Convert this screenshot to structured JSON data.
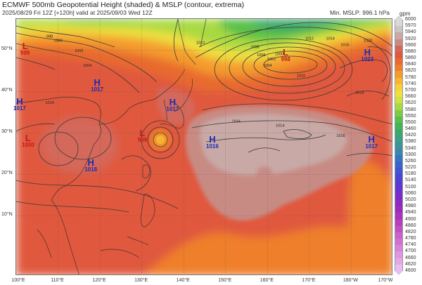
{
  "header": {
    "title": "ECMWF 500mb Geopotential Height (shaded) & MSLP (contour, extrema)",
    "subtitle": "2025/08/29 Fri 12Z [+120h] valid at 2025/09/03 Wed 12Z",
    "min_mslp": "Min. MSLP: 996.1 hPa"
  },
  "colorbar": {
    "unit": "gpm",
    "levels": [
      "6000",
      "5970",
      "5940",
      "5920",
      "5900",
      "5880",
      "5860",
      "5840",
      "5820",
      "5780",
      "5740",
      "5700",
      "5660",
      "5620",
      "5580",
      "5550",
      "5500",
      "5460",
      "5420",
      "5380",
      "5340",
      "5300",
      "5260",
      "5220",
      "5180",
      "5140",
      "5100",
      "5060",
      "5020",
      "4980",
      "4940",
      "4900",
      "4860",
      "4820",
      "4780",
      "4740",
      "4700",
      "4660",
      "4620",
      "4600"
    ],
    "colors": [
      "#d9d9d9",
      "#cfc4c4",
      "#c8a9a6",
      "#c88b84",
      "#d4675a",
      "#e0583d",
      "#e86a2e",
      "#ef7f2a",
      "#f49c2e",
      "#f8b534",
      "#f7cf3a",
      "#eee13f",
      "#cfe242",
      "#a8d943",
      "#7ccc45",
      "#58bf4a",
      "#43b458",
      "#3aa969",
      "#3f9f80",
      "#3c9497",
      "#3b86ad",
      "#3875c0",
      "#3a63cc",
      "#4053d2",
      "#4a45d4",
      "#583ad2",
      "#6a31ce",
      "#7b2bc8",
      "#8c29c2",
      "#9c2bbd",
      "#ab33bc",
      "#b73fbf",
      "#c24ec4",
      "#cb5fcb",
      "#d270d2",
      "#d982d9",
      "#df95e0",
      "#e5a8e7",
      "#ebbdee"
    ]
  },
  "axes": {
    "lat_labels": [
      {
        "text": "50°N",
        "lat": 50
      },
      {
        "text": "40°N",
        "lat": 40
      },
      {
        "text": "30°N",
        "lat": 30
      },
      {
        "text": "20°N",
        "lat": 20
      },
      {
        "text": "10°N",
        "lat": 10
      }
    ],
    "lon_labels": [
      {
        "text": "100°E",
        "lon": 100
      },
      {
        "text": "110°E",
        "lon": 110
      },
      {
        "text": "120°E",
        "lon": 120
      },
      {
        "text": "130°E",
        "lon": 130
      },
      {
        "text": "140°E",
        "lon": 140
      },
      {
        "text": "150°E",
        "lon": 150
      },
      {
        "text": "160°E",
        "lon": 160
      },
      {
        "text": "170°E",
        "lon": 170
      },
      {
        "text": "180°W",
        "lon": 180
      },
      {
        "text": "170°W",
        "lon": 190
      }
    ]
  },
  "centers": [
    {
      "type": "L",
      "value": "999",
      "lat": 50.5,
      "lon": 102.3
    },
    {
      "type": "H",
      "value": "1017",
      "lat": 41.8,
      "lon": 119.5
    },
    {
      "type": "H",
      "value": "1017",
      "lat": 37.2,
      "lon": 101.0
    },
    {
      "type": "H",
      "value": "1017",
      "lat": 37.0,
      "lon": 137.5
    },
    {
      "type": "L",
      "value": "1000",
      "lat": 28.3,
      "lon": 103.0
    },
    {
      "type": "L",
      "value": "999",
      "lat": 29.5,
      "lon": 130.3
    },
    {
      "type": "H",
      "value": "1018",
      "lat": 22.5,
      "lon": 118.0
    },
    {
      "type": "H",
      "value": "1016",
      "lat": 28.0,
      "lon": 147.0
    },
    {
      "type": "L",
      "value": "998",
      "lat": 49.0,
      "lon": 164.5
    },
    {
      "type": "H",
      "value": "1023",
      "lat": 49.0,
      "lon": 184.0
    },
    {
      "type": "H",
      "value": "1017",
      "lat": 28.0,
      "lon": 185.0
    }
  ],
  "isobar_labels": [
    {
      "text": "1006",
      "lat": 48.5,
      "lon": 158.5
    },
    {
      "text": "1004",
      "lat": 46.0,
      "lon": 160.0
    },
    {
      "text": "1002",
      "lat": 47.5,
      "lon": 161.0
    },
    {
      "text": "1000",
      "lat": 48.8,
      "lon": 162.8
    },
    {
      "text": "1008",
      "lat": 50.5,
      "lon": 157.0
    },
    {
      "text": "1010",
      "lat": 43.5,
      "lon": 168.0
    },
    {
      "text": "1012",
      "lat": 52.5,
      "lon": 170.0
    },
    {
      "text": "1014",
      "lat": 52.5,
      "lon": 175.0
    },
    {
      "text": "1016",
      "lat": 51.0,
      "lon": 178.5
    },
    {
      "text": "1018",
      "lat": 39.5,
      "lon": 182.0
    },
    {
      "text": "1020",
      "lat": 52.0,
      "lon": 184.0
    },
    {
      "text": "1014",
      "lat": 32.5,
      "lon": 152.5
    },
    {
      "text": "1014",
      "lat": 31.5,
      "lon": 163.0
    },
    {
      "text": "1016",
      "lat": 29.0,
      "lon": 177.5
    },
    {
      "text": "1014",
      "lat": 37.0,
      "lon": 108.0
    },
    {
      "text": "1010",
      "lat": 51.5,
      "lon": 144.0
    },
    {
      "text": "998",
      "lat": 53.0,
      "lon": 108.0
    },
    {
      "text": "1000",
      "lat": 52.0,
      "lon": 110.0
    },
    {
      "text": "1002",
      "lat": 49.5,
      "lon": 115.0
    },
    {
      "text": "1004",
      "lat": 46.0,
      "lon": 117.0
    }
  ]
}
